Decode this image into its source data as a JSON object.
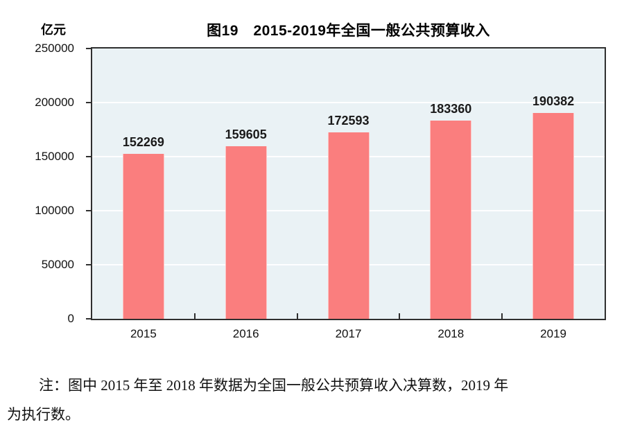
{
  "chart_data": {
    "type": "bar",
    "title": "图19　2015-2019年全国一般公共预算收入",
    "unit_label": "亿元",
    "categories": [
      "2015",
      "2016",
      "2017",
      "2018",
      "2019"
    ],
    "values": [
      152269,
      159605,
      172593,
      183360,
      190382
    ],
    "value_labels": [
      "152269",
      "159605",
      "172593",
      "183360",
      "190382"
    ],
    "ylim": [
      0,
      250000
    ],
    "ytick_interval": 50000,
    "ytick_labels": [
      "0",
      "50000",
      "100000",
      "150000",
      "200000",
      "250000"
    ],
    "grid": true,
    "legend": "none",
    "colors": {
      "bar": "#FA7E7E",
      "plot_background": "#EAF2F5",
      "gridline": "#FFFFFF",
      "axis_border": "#2F2F2F",
      "text": "#000000"
    }
  },
  "note": {
    "line1": "注：图中 2015 年至 2018 年数据为全国一般公共预算收入决算数，2019 年",
    "line2": "为执行数。"
  }
}
